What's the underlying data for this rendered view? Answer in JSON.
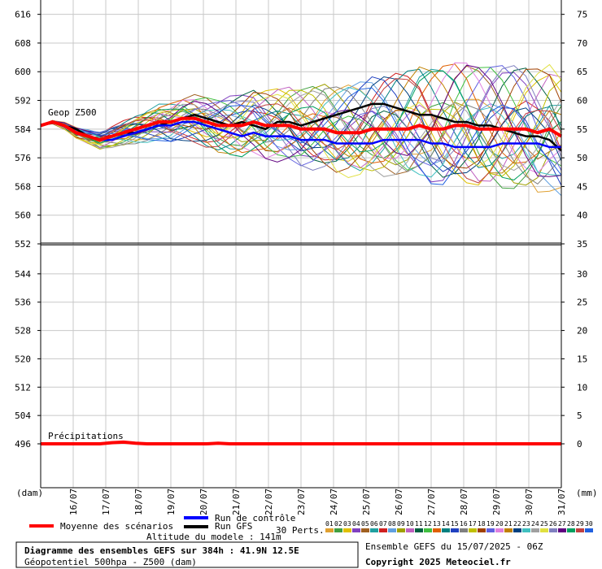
{
  "chart_data": {
    "type": "line",
    "x_dates": [
      "16/07",
      "17/07",
      "18/07",
      "19/07",
      "20/07",
      "21/07",
      "22/07",
      "23/07",
      "24/07",
      "25/07",
      "26/07",
      "27/07",
      "28/07",
      "29/07",
      "30/07",
      "31/07"
    ],
    "top_panel": {
      "label": "Geop Z500",
      "left_ticks": [
        616,
        608,
        600,
        592,
        584,
        576,
        568,
        560,
        552
      ],
      "right_ticks": [
        75,
        70,
        65,
        60,
        55,
        50,
        45,
        40,
        35
      ],
      "ylim": [
        552,
        620
      ],
      "mean": [
        585,
        586,
        585,
        583,
        582,
        581,
        582,
        583,
        584,
        585,
        586,
        586,
        587,
        587,
        586,
        585,
        585,
        585,
        586,
        585,
        585,
        585,
        584,
        584,
        584,
        583,
        583,
        583,
        584,
        584,
        584,
        584,
        585,
        584,
        584,
        585,
        585,
        584,
        584,
        584,
        584,
        584,
        583,
        584,
        582
      ],
      "control": [
        585,
        586,
        585,
        583,
        582,
        581,
        581,
        582,
        583,
        584,
        585,
        585,
        586,
        586,
        585,
        584,
        583,
        582,
        583,
        582,
        582,
        582,
        581,
        581,
        581,
        580,
        580,
        580,
        580,
        581,
        581,
        581,
        581,
        580,
        580,
        579,
        579,
        579,
        579,
        580,
        580,
        580,
        580,
        579,
        579
      ],
      "gfs": [
        585,
        586,
        585,
        584,
        582,
        581,
        582,
        583,
        583,
        584,
        585,
        586,
        587,
        588,
        587,
        586,
        585,
        586,
        585,
        584,
        586,
        586,
        585,
        586,
        587,
        588,
        589,
        590,
        591,
        591,
        590,
        589,
        588,
        588,
        587,
        586,
        586,
        585,
        585,
        584,
        583,
        582,
        582,
        581,
        578
      ]
    },
    "bottom_panel": {
      "label": "Précipitations",
      "left_ticks": [
        552,
        544,
        536,
        528,
        520,
        512,
        504,
        496
      ],
      "right_ticks": [
        35,
        30,
        25,
        20,
        15,
        10,
        5,
        0
      ],
      "ylim": [
        0,
        35
      ],
      "mean": [
        0,
        0,
        0,
        0,
        0,
        0,
        0.2,
        0.3,
        0.1,
        0,
        0,
        0,
        0,
        0,
        0,
        0.1,
        0,
        0,
        0,
        0,
        0,
        0,
        0,
        0,
        0,
        0,
        0,
        0,
        0,
        0,
        0,
        0,
        0,
        0,
        0,
        0,
        0,
        0,
        0,
        0,
        0,
        0,
        0,
        0,
        0
      ]
    },
    "left_unit": "(dam)",
    "right_unit": "(mm)",
    "legend": {
      "mean": "Moyenne des scénarios",
      "control": "Run de contrôle",
      "gfs": "Run GFS",
      "perts": "30 Perts."
    },
    "pert_labels": [
      "01",
      "02",
      "03",
      "04",
      "05",
      "06",
      "07",
      "08",
      "09",
      "10",
      "11",
      "12",
      "13",
      "14",
      "15",
      "16",
      "17",
      "18",
      "19",
      "20",
      "21",
      "22",
      "23",
      "24",
      "25",
      "26",
      "27",
      "28",
      "29",
      "30"
    ],
    "pert_colors": [
      "#e0a030",
      "#40a040",
      "#e0c000",
      "#8040c0",
      "#a06020",
      "#20a0a0",
      "#d02020",
      "#60a0e0",
      "#a0a000",
      "#c060c0",
      "#006040",
      "#40c040",
      "#e06000",
      "#008080",
      "#2040c0",
      "#808080",
      "#c0c000",
      "#a04000",
      "#6060e0",
      "#e080e0",
      "#c08000",
      "#004080",
      "#40c0c0",
      "#a0a0a0",
      "#e0e040",
      "#8080c0",
      "#600080",
      "#00a060",
      "#c04040",
      "#2060e0"
    ],
    "colors": {
      "mean": "#ff0000",
      "control": "#0000ff",
      "gfs": "#000000"
    }
  },
  "footer": {
    "altitude": "Altitude du modele : 141m",
    "title": "Diagramme des ensembles GEFS sur 384h : 41.9N 12.5E",
    "subtitle": "Géopotentiel 500hpa - Z500 (dam)",
    "run": "Ensemble GEFS du 15/07/2025 - 06Z",
    "copyright": "Copyright 2025 Meteociel.fr"
  }
}
